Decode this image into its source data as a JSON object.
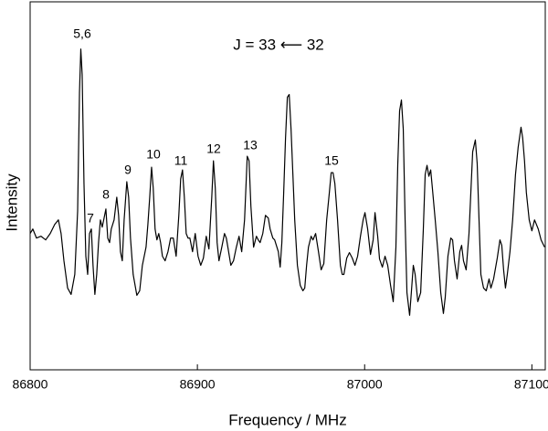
{
  "chart_data": {
    "type": "line",
    "xlabel": "Frequency / MHz",
    "ylabel": "Intensity",
    "xlim": [
      86800,
      87108
    ],
    "xticks": [
      86800,
      86900,
      87000,
      87100
    ],
    "ylim": [
      0,
      405
    ],
    "color": "#000000",
    "annotations": [
      "5,6",
      "7",
      "8",
      "9",
      "10",
      "11",
      "12",
      "13",
      "15",
      "J = 33 ⟵ 32"
    ],
    "x": [
      86800,
      86801.6,
      86803.8,
      86806.5,
      86809.3,
      86812,
      86814.7,
      86816.9,
      86818.5,
      86820.2,
      86822.4,
      86824.5,
      86826.7,
      86828.4,
      86829.5,
      86830.3,
      86831.1,
      86832.2,
      86833.3,
      86834.4,
      86835.5,
      86836.6,
      86837.6,
      86838.7,
      86839.8,
      86840.9,
      86842,
      86843.1,
      86844.2,
      86845.3,
      86846.4,
      86847.5,
      86848.5,
      86850.2,
      86851.8,
      86852.9,
      86854,
      86855.1,
      86856.2,
      86857.8,
      86858.9,
      86860,
      86861.6,
      86863.8,
      86865.5,
      86867.1,
      86869.3,
      86870.4,
      86871.5,
      86872.6,
      86873.6,
      86874.7,
      86875.8,
      86876.9,
      86878,
      86879.1,
      86880.7,
      86882.4,
      86884,
      86885.6,
      86887.3,
      86888.9,
      86890,
      86891.1,
      86892.2,
      86893.3,
      86894.4,
      86895.5,
      86897.1,
      86898.7,
      86900.4,
      86902,
      86903.6,
      86905.3,
      86906.9,
      86908.6,
      86909.6,
      86910.7,
      86911.8,
      86912.9,
      86914.6,
      86916.2,
      86917.3,
      86918.4,
      86920,
      86921.6,
      86923.3,
      86924.9,
      86926.5,
      86928.2,
      86929.8,
      86930.9,
      86932,
      86933.6,
      86935.3,
      86936.4,
      86937.5,
      86939.1,
      86940.7,
      86942.4,
      86943.5,
      86945.1,
      86946.2,
      86948.4,
      86949.5,
      86950.5,
      86951.6,
      86952.7,
      86953.8,
      86954.9,
      86956,
      86957.1,
      86958.2,
      86959.8,
      86961.5,
      86963.1,
      86964.2,
      86965.3,
      86966.4,
      86968,
      86969.1,
      86970.7,
      86972.4,
      86974,
      86975.6,
      86977.3,
      86978.9,
      86980,
      86981.1,
      86982.2,
      86983.8,
      86985.5,
      86986.6,
      86987.6,
      86989.3,
      86990.9,
      86992.6,
      86994.2,
      86995.8,
      86997.5,
      86999.1,
      87000.2,
      87001.8,
      87003.5,
      87005.1,
      87006.2,
      87007.8,
      87008.9,
      87010.6,
      87012.2,
      87013.8,
      87015.5,
      87017.1,
      87018.7,
      87019.8,
      87020.9,
      87022,
      87023.1,
      87024.2,
      87025.3,
      87026.9,
      87028,
      87029.1,
      87030.2,
      87031.8,
      87033.5,
      87035.1,
      87036.2,
      87037.3,
      87038.4,
      87039.5,
      87040.5,
      87042.2,
      87043.8,
      87045.5,
      87047.1,
      87048.2,
      87049.8,
      87051.5,
      87052.6,
      87053.7,
      87055.3,
      87056.9,
      87058,
      87059.1,
      87060.7,
      87062.4,
      87063.5,
      87064.6,
      87066.2,
      87067.3,
      87068.4,
      87069.5,
      87071.1,
      87072.7,
      87074.4,
      87075.5,
      87077.1,
      87079.3,
      87080.9,
      87082,
      87083.1,
      87084.2,
      87085.3,
      87086.9,
      87088.5,
      87090.2,
      87091.8,
      87093.5,
      87094.5,
      87095.6,
      87096.7,
      87098.4,
      87100,
      87101.6,
      87103.8,
      87105.5,
      87107.6
    ],
    "values": [
      150,
      155,
      145,
      147,
      143,
      150,
      160,
      165,
      150,
      120,
      90,
      83,
      105,
      175,
      305,
      353,
      325,
      205,
      125,
      105,
      150,
      155,
      115,
      83,
      105,
      140,
      165,
      157,
      167,
      177,
      145,
      140,
      155,
      165,
      190,
      170,
      130,
      120,
      165,
      207,
      190,
      145,
      105,
      82,
      87,
      115,
      135,
      160,
      190,
      223,
      200,
      155,
      143,
      150,
      140,
      125,
      120,
      130,
      145,
      145,
      125,
      170,
      210,
      220,
      190,
      150,
      145,
      145,
      130,
      150,
      125,
      115,
      123,
      147,
      133,
      190,
      230,
      200,
      140,
      120,
      135,
      150,
      145,
      133,
      115,
      120,
      135,
      147,
      130,
      165,
      235,
      230,
      180,
      135,
      147,
      143,
      140,
      150,
      170,
      167,
      155,
      145,
      143,
      130,
      113,
      140,
      195,
      255,
      300,
      303,
      265,
      215,
      165,
      115,
      93,
      87,
      90,
      115,
      135,
      147,
      143,
      150,
      130,
      110,
      117,
      165,
      195,
      217,
      217,
      205,
      165,
      115,
      105,
      105,
      123,
      129,
      123,
      115,
      125,
      147,
      165,
      173,
      155,
      127,
      143,
      173,
      147,
      122,
      113,
      125,
      115,
      93,
      75,
      135,
      225,
      285,
      297,
      265,
      165,
      85,
      60,
      87,
      115,
      105,
      75,
      85,
      155,
      215,
      225,
      213,
      220,
      200,
      165,
      130,
      85,
      62,
      80,
      125,
      145,
      143,
      120,
      100,
      130,
      137,
      120,
      110,
      150,
      195,
      240,
      253,
      227,
      165,
      105,
      90,
      87,
      100,
      90,
      100,
      123,
      143,
      137,
      110,
      90,
      105,
      130,
      165,
      215,
      245,
      267,
      255,
      230,
      195,
      165,
      153,
      165,
      155,
      143,
      135
    ]
  }
}
